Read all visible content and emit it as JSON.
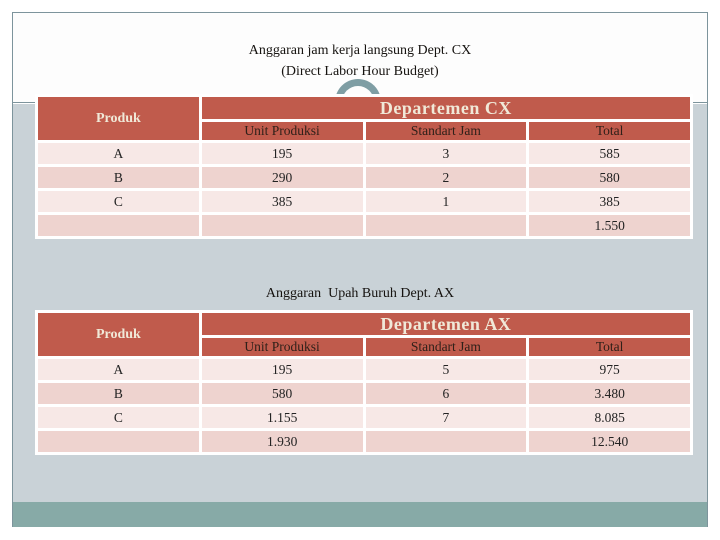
{
  "section_cx": {
    "title_line1": "Anggaran jam kerja langsung Dept. CX",
    "title_line2": "(Direct Labor Hour Budget)",
    "table": {
      "produk_header": "Produk",
      "dept_header": "Departemen CX",
      "columns": [
        "Unit Produksi",
        "Standart Jam",
        "Total"
      ],
      "rows": [
        {
          "produk": "A",
          "unit_produksi": "195",
          "standart_jam": "3",
          "total": "585"
        },
        {
          "produk": "B",
          "unit_produksi": "290",
          "standart_jam": "2",
          "total": "580"
        },
        {
          "produk": "C",
          "unit_produksi": "385",
          "standart_jam": "1",
          "total": "385"
        }
      ],
      "totals": {
        "produk": "",
        "unit_produksi": "",
        "standart_jam": "",
        "total": "1.550"
      }
    }
  },
  "section_ax": {
    "title": "Anggaran  Upah Buruh Dept. AX",
    "table": {
      "produk_header": "Produk",
      "dept_header": "Departemen AX",
      "columns": [
        "Unit Produksi",
        "Standart Jam",
        "Total"
      ],
      "rows": [
        {
          "produk": "A",
          "unit_produksi": "195",
          "standart_jam": "5",
          "total": "975"
        },
        {
          "produk": "B",
          "unit_produksi": "580",
          "standart_jam": "6",
          "total": "3.480"
        },
        {
          "produk": "C",
          "unit_produksi": "1.155",
          "standart_jam": "7",
          "total": "8.085"
        }
      ],
      "totals": {
        "produk": "",
        "unit_produksi": "1.930",
        "standart_jam": "",
        "total": "12.540"
      }
    }
  },
  "colors": {
    "header_red": "#c05b4c",
    "header_text_cream": "#f0e9d8",
    "subheader_text": "#2f2019",
    "row_light": "#f7e8e6",
    "row_dark": "#eed3cf",
    "body_background": "#c9d2d7",
    "footer_teal": "#87aaa7",
    "frame_border": "#7d949c",
    "arc_gray": "#7f9ea4"
  }
}
